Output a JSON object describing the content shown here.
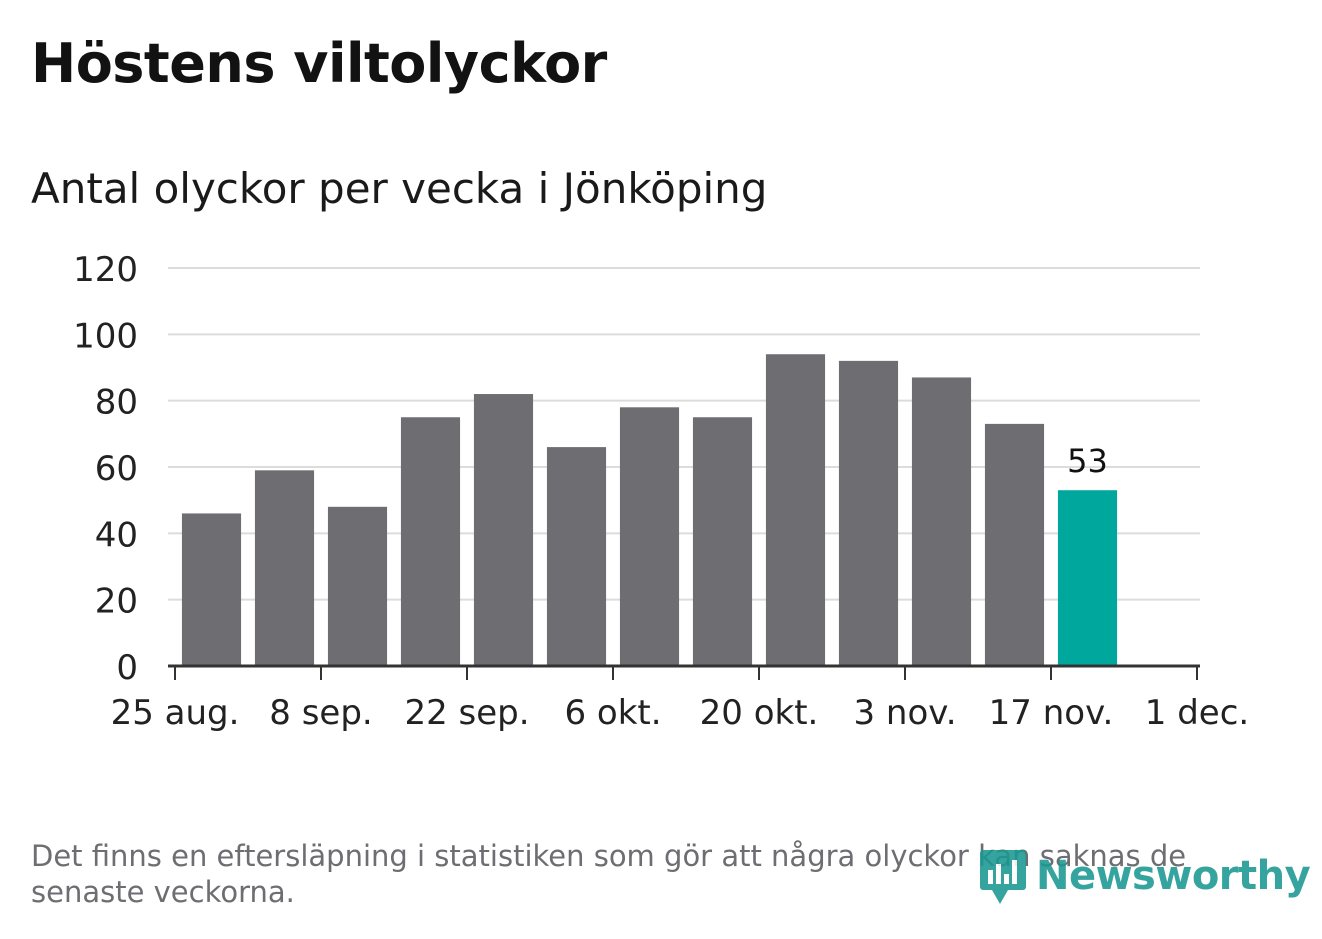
{
  "title": "Höstens viltolyckor",
  "subtitle": "Antal olyckor per vecka i Jönköping",
  "footnote": "Det finns en eftersläpning i statistiken som gör att några olyckor kan saknas de senaste veckorna.",
  "logo": {
    "text": "Newsworthy",
    "icon": "newsworthy-bar-icon"
  },
  "colors": {
    "bar": "#6e6d72",
    "highlight": "#00a79d",
    "grid": "#dcdcdc",
    "axis": "#333333",
    "text": "#222222"
  },
  "chart_data": {
    "type": "bar",
    "title": "Antal olyckor per vecka i Jönköping",
    "xlabel": "",
    "ylabel": "",
    "ylim": [
      0,
      120
    ],
    "yticks": [
      0,
      20,
      40,
      60,
      80,
      100,
      120
    ],
    "x_range": [
      "2024-08-25",
      "2024-12-01"
    ],
    "xticks": [
      {
        "date": "2024-08-25",
        "label": "25 aug."
      },
      {
        "date": "2024-09-08",
        "label": "8 sep."
      },
      {
        "date": "2024-09-22",
        "label": "22 sep."
      },
      {
        "date": "2024-10-06",
        "label": "6 okt."
      },
      {
        "date": "2024-10-20",
        "label": "20 okt."
      },
      {
        "date": "2024-11-03",
        "label": "3 nov."
      },
      {
        "date": "2024-11-17",
        "label": "17 nov."
      },
      {
        "date": "2024-12-01",
        "label": "1 dec."
      }
    ],
    "weeks": [
      "2024-09-01",
      "2024-09-08",
      "2024-09-15",
      "2024-09-22",
      "2024-09-29",
      "2024-10-06",
      "2024-10-13",
      "2024-10-20",
      "2024-10-27",
      "2024-11-03",
      "2024-11-10",
      "2024-11-17",
      "2024-11-24"
    ],
    "values": [
      46,
      59,
      48,
      75,
      82,
      66,
      78,
      75,
      94,
      92,
      87,
      73,
      53
    ],
    "highlight": {
      "week": "2024-11-24",
      "value": 53,
      "label": "53"
    },
    "grid": true
  }
}
